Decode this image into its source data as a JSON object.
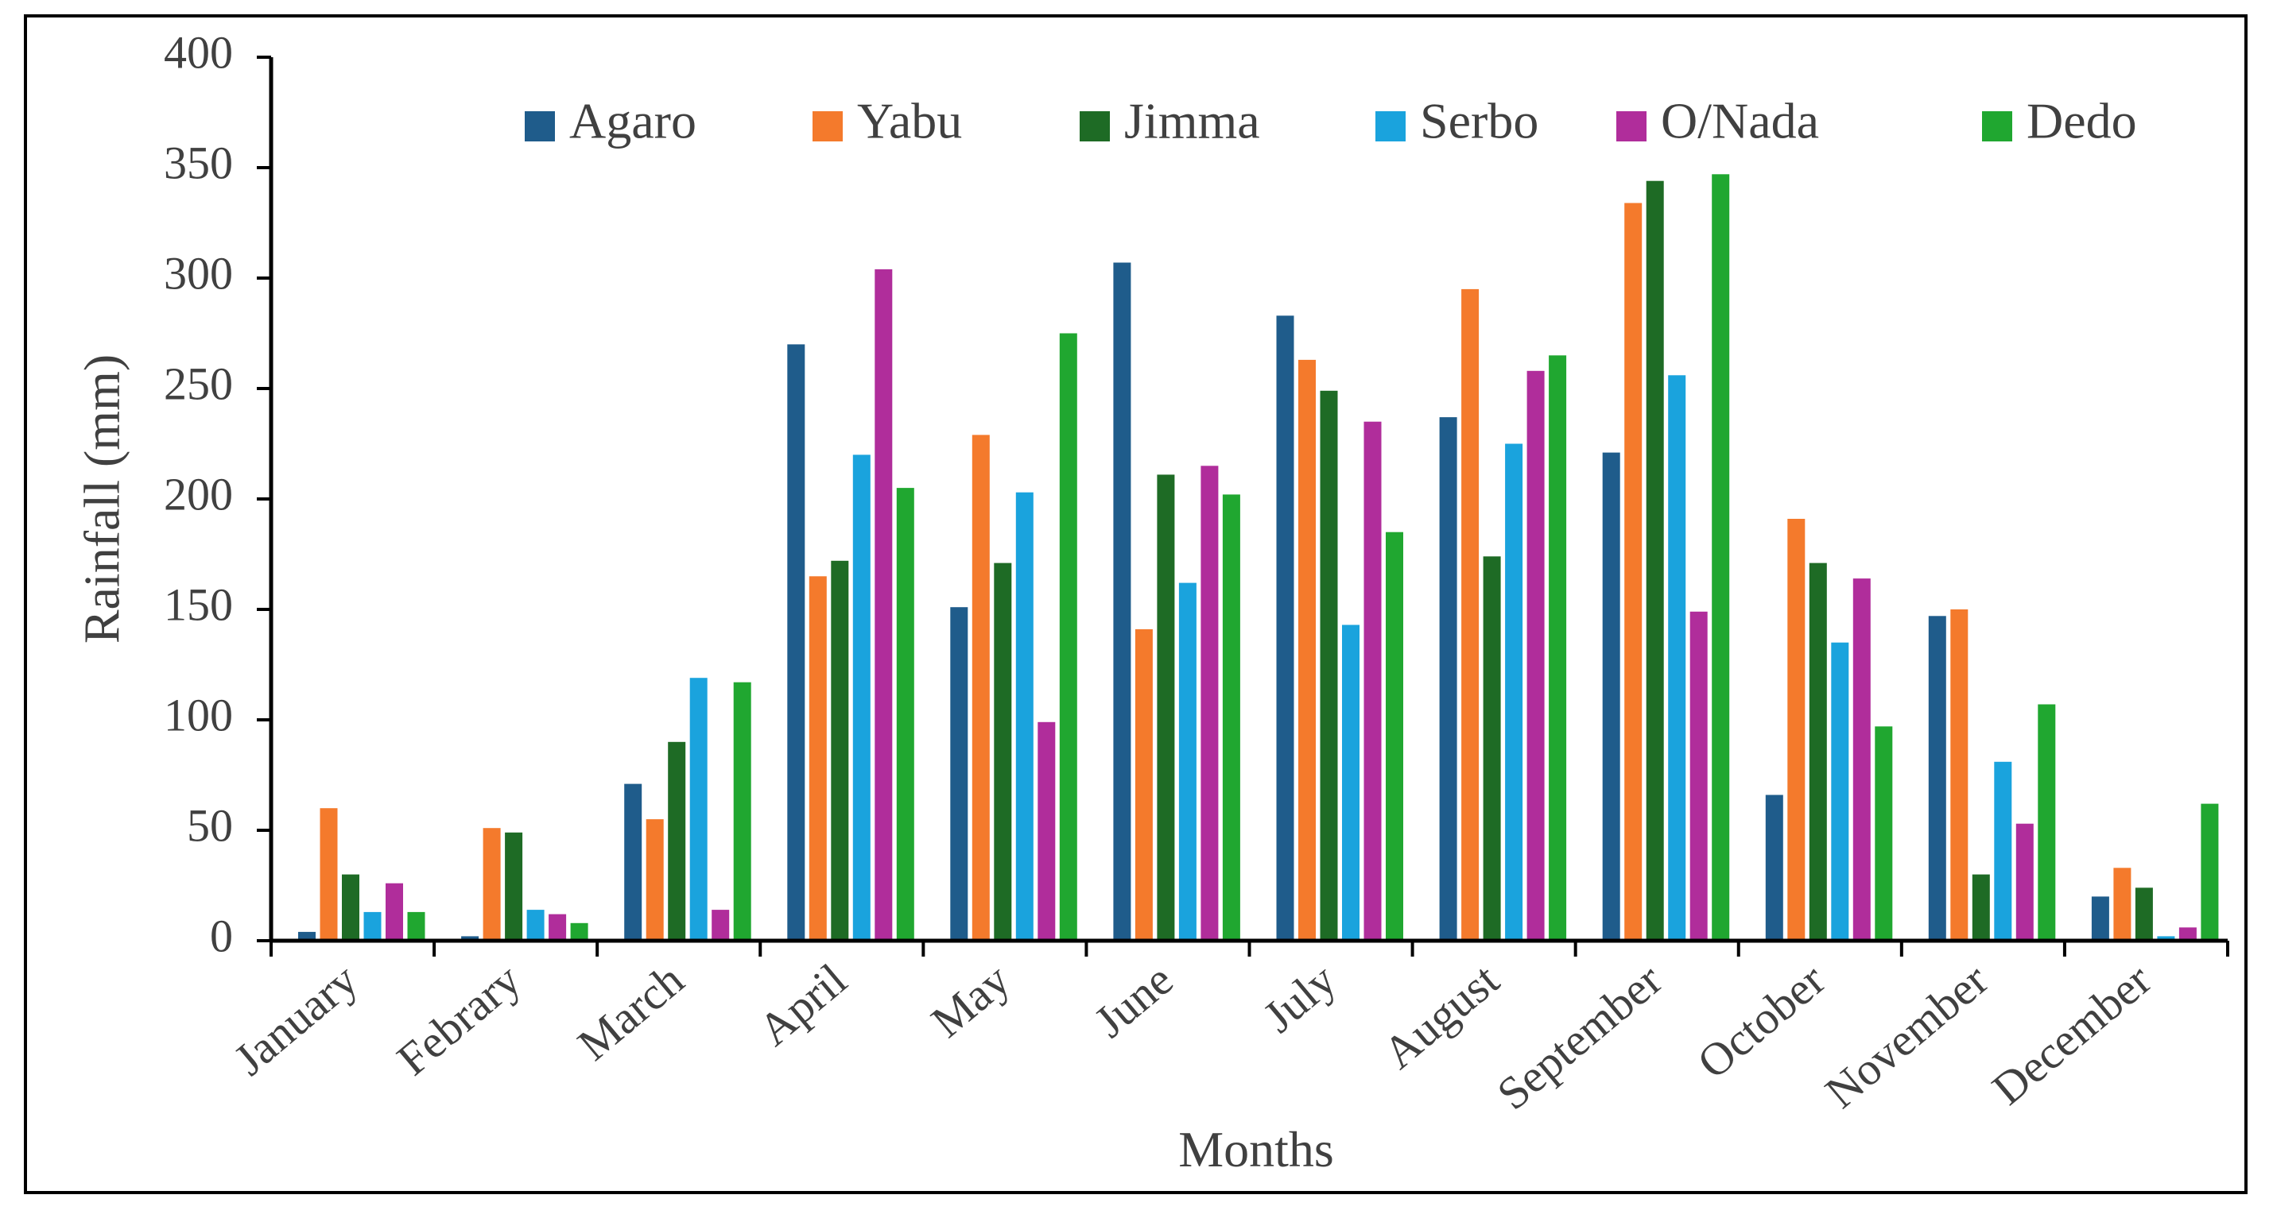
{
  "chart_data": {
    "type": "bar",
    "title": "",
    "xlabel": "Months",
    "ylabel": "Rainfall (mm)",
    "ylim": [
      0,
      400
    ],
    "yticks": [
      "0",
      "50",
      "100",
      "150",
      "200",
      "250",
      "300",
      "350",
      "400"
    ],
    "grid": false,
    "legend_position": "top",
    "categories": [
      "January",
      "Febrary",
      "March",
      "April",
      "May",
      "June",
      "July",
      "August",
      "September",
      "October",
      "November",
      "December"
    ],
    "series": [
      {
        "name": "Agaro",
        "color": "#1F5C8B",
        "values": [
          4,
          2,
          71,
          270,
          151,
          307,
          283,
          237,
          221,
          66,
          147,
          20
        ]
      },
      {
        "name": "Yabu",
        "color": "#F47A2C",
        "values": [
          60,
          51,
          55,
          165,
          229,
          141,
          263,
          295,
          334,
          191,
          150,
          33
        ]
      },
      {
        "name": "Jimma",
        "color": "#1E6B25",
        "values": [
          30,
          49,
          90,
          172,
          171,
          211,
          249,
          174,
          344,
          171,
          30,
          24
        ]
      },
      {
        "name": "Serbo",
        "color": "#1AA3DD",
        "values": [
          13,
          14,
          119,
          220,
          203,
          162,
          143,
          225,
          256,
          135,
          81,
          2
        ]
      },
      {
        "name": "O/Nada",
        "color": "#B02D9B",
        "values": [
          26,
          12,
          14,
          304,
          99,
          215,
          235,
          258,
          149,
          164,
          53,
          6
        ]
      },
      {
        "name": "Dedo",
        "color": "#20A730",
        "values": [
          13,
          8,
          117,
          205,
          275,
          202,
          185,
          265,
          347,
          97,
          107,
          62
        ]
      }
    ]
  }
}
